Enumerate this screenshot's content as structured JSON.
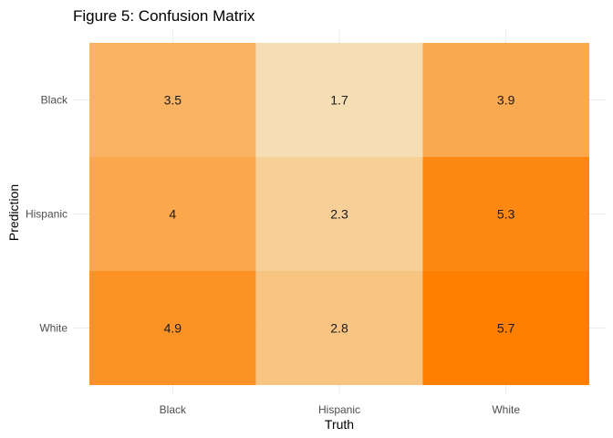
{
  "chart_data": {
    "type": "heatmap",
    "title": "Figure 5: Confusion Matrix",
    "xlabel": "Truth",
    "ylabel": "Prediction",
    "x_categories": [
      "Black",
      "Hispanic",
      "White"
    ],
    "y_categories": [
      "Black",
      "Hispanic",
      "White"
    ],
    "cells": [
      {
        "x": "Black",
        "y": "Black",
        "value": 3.5,
        "label": "3.5"
      },
      {
        "x": "Hispanic",
        "y": "Black",
        "value": 1.7,
        "label": "1.7"
      },
      {
        "x": "White",
        "y": "Black",
        "value": 3.9,
        "label": "3.9"
      },
      {
        "x": "Black",
        "y": "Hispanic",
        "value": 4,
        "label": "4"
      },
      {
        "x": "Hispanic",
        "y": "Hispanic",
        "value": 2.3,
        "label": "2.3"
      },
      {
        "x": "White",
        "y": "Hispanic",
        "value": 5.3,
        "label": "5.3"
      },
      {
        "x": "Black",
        "y": "White",
        "value": 4.9,
        "label": "4.9"
      },
      {
        "x": "Hispanic",
        "y": "White",
        "value": 2.8,
        "label": "2.8"
      },
      {
        "x": "White",
        "y": "White",
        "value": 5.7,
        "label": "5.7"
      }
    ],
    "color_scale": {
      "low": "#f5deb3",
      "high": "#ff7f00",
      "min": 1.7,
      "max": 5.7
    },
    "grid": true,
    "legend": "none"
  }
}
